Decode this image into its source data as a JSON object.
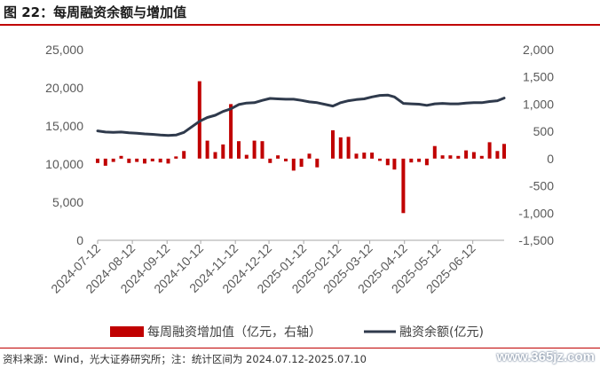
{
  "header": {
    "title": "图 22：每周融资余额与增加值"
  },
  "footer": {
    "source": "资料来源：Wind，光大证券研究所；注：统计区间为 2024.07.12-2025.07.10",
    "watermark": "www.365jz.com"
  },
  "chart_data": {
    "type": "bar+line",
    "x_tick_labels": [
      "2024-07-12",
      "2024-08-12",
      "2024-09-12",
      "2024-10-12",
      "2024-11-12",
      "2024-12-12",
      "2025-01-12",
      "2025-02-12",
      "2025-03-12",
      "2025-04-12",
      "2025-05-12",
      "2025-06-12"
    ],
    "y_left": {
      "range": [
        0,
        25000
      ],
      "ticks": [
        "0",
        "5,000",
        "10,000",
        "15,000",
        "20,000",
        "25,000"
      ]
    },
    "y_right": {
      "range": [
        -1500,
        2000
      ],
      "ticks": [
        "-1,500",
        "-1,000",
        "-500",
        "0",
        "500",
        "1,000",
        "1,500",
        "2,000"
      ]
    },
    "legend": {
      "position": "bottom"
    },
    "colors": {
      "bars": "#c00000",
      "line": "#2f3a4c"
    },
    "series": [
      {
        "name": "每周融资增加值（亿元，右轴）",
        "kind": "bar",
        "axis": "right",
        "x": [
          "2024-07-12",
          "2024-07-19",
          "2024-07-26",
          "2024-08-02",
          "2024-08-09",
          "2024-08-16",
          "2024-08-23",
          "2024-08-30",
          "2024-09-06",
          "2024-09-13",
          "2024-09-20",
          "2024-09-27",
          "2024-10-11",
          "2024-10-18",
          "2024-10-25",
          "2024-11-01",
          "2024-11-08",
          "2024-11-15",
          "2024-11-22",
          "2024-11-29",
          "2024-12-06",
          "2024-12-13",
          "2024-12-20",
          "2024-12-27",
          "2025-01-03",
          "2025-01-10",
          "2025-01-17",
          "2025-01-24",
          "2025-02-07",
          "2025-02-14",
          "2025-02-21",
          "2025-02-28",
          "2025-03-07",
          "2025-03-14",
          "2025-03-21",
          "2025-03-28",
          "2025-04-03",
          "2025-04-11",
          "2025-04-18",
          "2025-04-25",
          "2025-05-02",
          "2025-05-09",
          "2025-05-16",
          "2025-05-23",
          "2025-05-30",
          "2025-06-06",
          "2025-06-13",
          "2025-06-20",
          "2025-06-27",
          "2025-07-04",
          "2025-07-10"
        ],
        "values": [
          -80,
          -130,
          -60,
          50,
          -80,
          -60,
          -90,
          -50,
          -70,
          -90,
          40,
          140,
          1420,
          330,
          120,
          260,
          1000,
          320,
          70,
          330,
          320,
          -80,
          60,
          -50,
          -220,
          -150,
          90,
          -160,
          520,
          390,
          400,
          90,
          110,
          110,
          -40,
          -120,
          -200,
          -1000,
          -70,
          -60,
          -120,
          230,
          60,
          60,
          50,
          150,
          120,
          50,
          300,
          140,
          270
        ]
      },
      {
        "name": "融资余额(亿元)",
        "kind": "line",
        "axis": "left",
        "x": [
          "2024-07-12",
          "2024-07-19",
          "2024-07-26",
          "2024-08-02",
          "2024-08-09",
          "2024-08-16",
          "2024-08-23",
          "2024-08-30",
          "2024-09-06",
          "2024-09-13",
          "2024-09-20",
          "2024-09-27",
          "2024-10-11",
          "2024-10-18",
          "2024-10-25",
          "2024-11-01",
          "2024-11-08",
          "2024-11-15",
          "2024-11-22",
          "2024-11-29",
          "2024-12-06",
          "2024-12-13",
          "2024-12-20",
          "2024-12-27",
          "2025-01-03",
          "2025-01-10",
          "2025-01-17",
          "2025-01-24",
          "2025-02-07",
          "2025-02-14",
          "2025-02-21",
          "2025-02-28",
          "2025-03-07",
          "2025-03-14",
          "2025-03-21",
          "2025-03-28",
          "2025-04-03",
          "2025-04-11",
          "2025-04-18",
          "2025-04-25",
          "2025-05-02",
          "2025-05-09",
          "2025-05-16",
          "2025-05-23",
          "2025-05-30",
          "2025-06-06",
          "2025-06-13",
          "2025-06-20",
          "2025-06-27",
          "2025-07-04",
          "2025-07-10"
        ],
        "values": [
          14350,
          14200,
          14150,
          14200,
          14100,
          14050,
          13950,
          13900,
          13800,
          13750,
          13800,
          14150,
          15600,
          16100,
          16400,
          16900,
          17250,
          17800,
          18000,
          18050,
          18350,
          18600,
          18550,
          18500,
          18500,
          18350,
          18150,
          18050,
          17600,
          18050,
          18300,
          18450,
          18550,
          18800,
          19000,
          19050,
          18800,
          17950,
          17900,
          17850,
          17700,
          17900,
          17950,
          17900,
          17900,
          18000,
          18050,
          18050,
          18200,
          18300,
          18650
        ]
      }
    ]
  }
}
